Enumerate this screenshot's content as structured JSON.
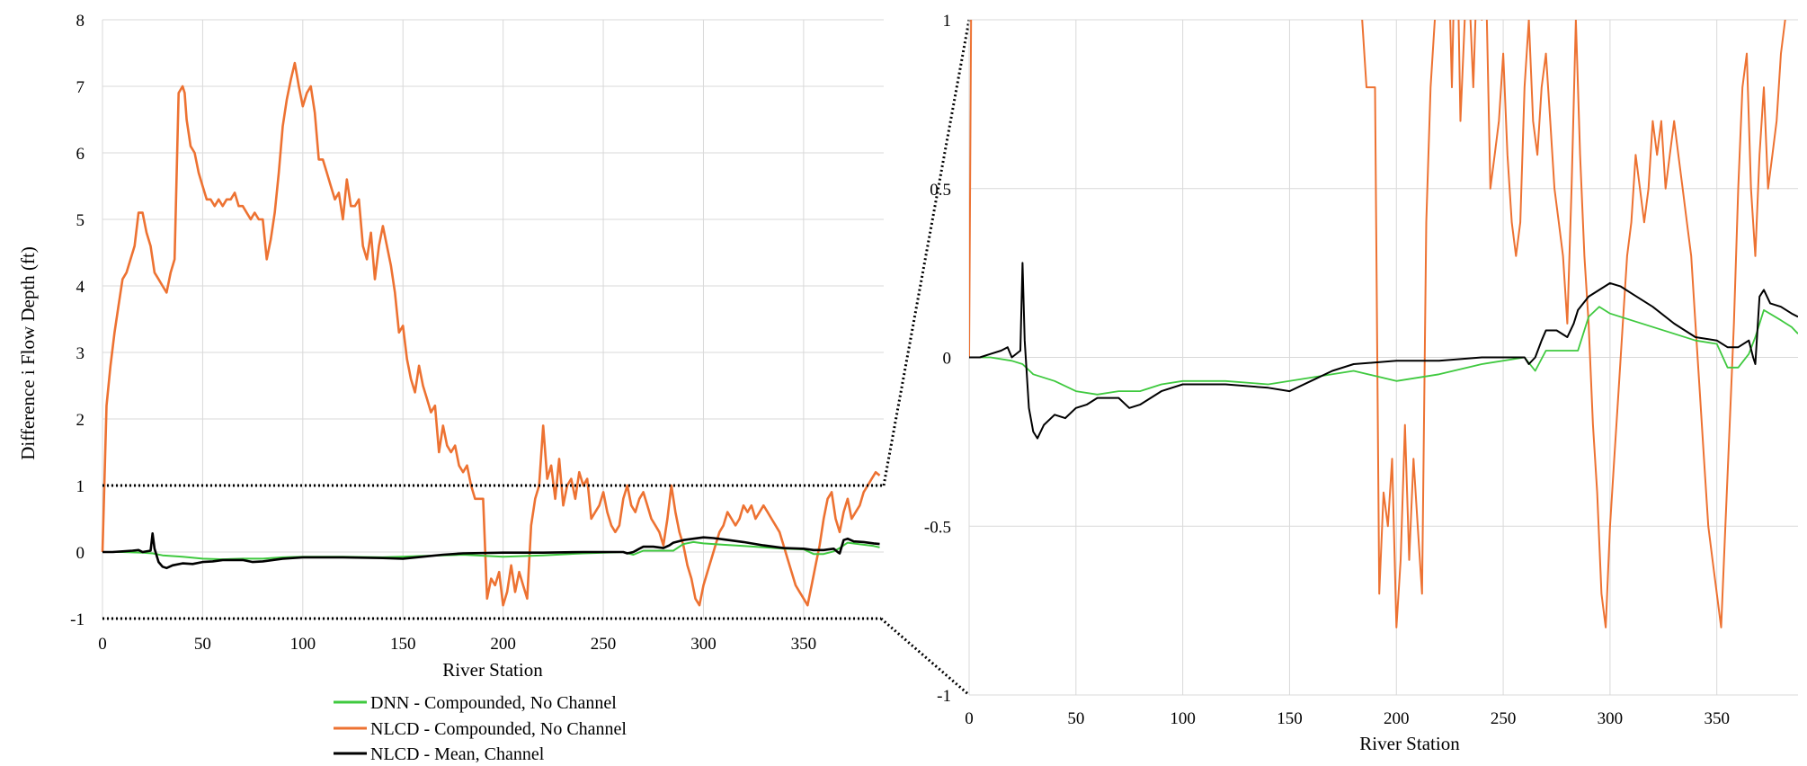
{
  "colors": {
    "dnn": "#3fc93f",
    "nlcd_compound": "#ed7232",
    "nlcd_mean": "#000000",
    "grid": "#d9d9d9"
  },
  "chart_data": [
    {
      "type": "line",
      "ylabel": "Difference i Flow Depth (ft)",
      "xlabel": "River Station",
      "xlim": [
        0,
        390
      ],
      "ylim": [
        -1,
        8
      ],
      "xticks": [
        "0",
        "50",
        "100",
        "150",
        "200",
        "250",
        "300",
        "350"
      ],
      "yticks": [
        "-1",
        "0",
        "1",
        "2",
        "3",
        "4",
        "5",
        "6",
        "7",
        "8"
      ],
      "grid": true,
      "zoom_box_y": [
        -1,
        1
      ],
      "legend": {
        "position": "bottom",
        "entries": [
          "DNN - Compounded, No Channel",
          "NLCD - Compounded, No Channel",
          "NLCD - Mean, Channel"
        ]
      },
      "series": [
        {
          "name": "DNN - Compounded, No Channel",
          "x": [
            0,
            10,
            20,
            25,
            30,
            40,
            50,
            60,
            70,
            80,
            90,
            100,
            120,
            140,
            160,
            180,
            200,
            220,
            240,
            260,
            265,
            270,
            280,
            285,
            290,
            295,
            300,
            310,
            320,
            330,
            340,
            350,
            355,
            360,
            365,
            368,
            372,
            380,
            385,
            388
          ],
          "y": [
            0,
            0,
            -0.01,
            -0.02,
            -0.05,
            -0.07,
            -0.1,
            -0.11,
            -0.1,
            -0.1,
            -0.08,
            -0.07,
            -0.07,
            -0.08,
            -0.06,
            -0.04,
            -0.07,
            -0.05,
            -0.02,
            0,
            -0.04,
            0.02,
            0.02,
            0.02,
            0.12,
            0.15,
            0.13,
            0.11,
            0.09,
            0.07,
            0.05,
            0.04,
            -0.03,
            -0.03,
            0.01,
            0.06,
            0.14,
            0.11,
            0.09,
            0.07
          ]
        },
        {
          "name": "NLCD - Compounded, No Channel",
          "x": [
            0,
            2,
            4,
            6,
            8,
            10,
            12,
            14,
            16,
            18,
            20,
            22,
            24,
            26,
            28,
            30,
            32,
            34,
            36,
            38,
            40,
            41,
            42,
            44,
            46,
            48,
            50,
            52,
            54,
            56,
            58,
            60,
            62,
            64,
            66,
            68,
            70,
            72,
            74,
            76,
            78,
            80,
            82,
            84,
            86,
            88,
            90,
            92,
            94,
            96,
            98,
            100,
            102,
            104,
            106,
            108,
            110,
            112,
            114,
            116,
            118,
            120,
            122,
            124,
            126,
            128,
            130,
            132,
            134,
            136,
            138,
            140,
            142,
            144,
            146,
            148,
            150,
            152,
            154,
            156,
            158,
            160,
            162,
            164,
            166,
            168,
            170,
            172,
            174,
            176,
            178,
            180,
            182,
            184,
            186,
            188,
            190,
            192,
            194,
            196,
            198,
            200,
            202,
            204,
            206,
            208,
            210,
            212,
            214,
            216,
            218,
            220,
            222,
            224,
            226,
            228,
            230,
            232,
            234,
            236,
            238,
            240,
            242,
            244,
            246,
            248,
            250,
            252,
            254,
            256,
            258,
            260,
            262,
            264,
            266,
            268,
            270,
            272,
            274,
            276,
            278,
            280,
            282,
            284,
            286,
            288,
            290,
            292,
            294,
            296,
            298,
            300,
            302,
            304,
            306,
            308,
            310,
            312,
            314,
            316,
            318,
            320,
            322,
            324,
            326,
            328,
            330,
            332,
            334,
            336,
            338,
            340,
            342,
            344,
            346,
            348,
            350,
            352,
            354,
            356,
            358,
            360,
            362,
            364,
            366,
            368,
            370,
            372,
            374,
            376,
            378,
            380,
            382,
            384,
            386,
            388
          ],
          "y": [
            0,
            2.2,
            2.8,
            3.3,
            3.7,
            4.1,
            4.2,
            4.4,
            4.6,
            5.1,
            5.1,
            4.8,
            4.6,
            4.2,
            4.1,
            4.0,
            3.9,
            4.2,
            4.4,
            6.9,
            7.0,
            6.9,
            6.5,
            6.1,
            6.0,
            5.7,
            5.5,
            5.3,
            5.3,
            5.2,
            5.3,
            5.2,
            5.3,
            5.3,
            5.4,
            5.2,
            5.2,
            5.1,
            5.0,
            5.1,
            5.0,
            5.0,
            4.4,
            4.7,
            5.1,
            5.7,
            6.4,
            6.8,
            7.1,
            7.35,
            7.0,
            6.7,
            6.9,
            7.0,
            6.6,
            5.9,
            5.9,
            5.7,
            5.5,
            5.3,
            5.4,
            5.0,
            5.6,
            5.2,
            5.2,
            5.3,
            4.6,
            4.4,
            4.8,
            4.1,
            4.6,
            4.9,
            4.6,
            4.3,
            3.9,
            3.3,
            3.4,
            2.9,
            2.6,
            2.4,
            2.8,
            2.5,
            2.3,
            2.1,
            2.2,
            1.5,
            1.9,
            1.6,
            1.5,
            1.6,
            1.3,
            1.2,
            1.3,
            1.0,
            0.8,
            0.8,
            0.8,
            -0.7,
            -0.4,
            -0.5,
            -0.3,
            -0.8,
            -0.6,
            -0.2,
            -0.6,
            -0.3,
            -0.5,
            -0.7,
            0.4,
            0.8,
            1.0,
            1.9,
            1.1,
            1.3,
            0.8,
            1.4,
            0.7,
            1.0,
            1.1,
            0.8,
            1.2,
            1.0,
            1.1,
            0.5,
            0.6,
            0.7,
            0.9,
            0.6,
            0.4,
            0.3,
            0.4,
            0.8,
            1.0,
            0.7,
            0.6,
            0.8,
            0.9,
            0.7,
            0.5,
            0.4,
            0.3,
            0.1,
            0.5,
            1.0,
            0.6,
            0.3,
            0.1,
            -0.2,
            -0.4,
            -0.7,
            -0.8,
            -0.5,
            -0.3,
            -0.1,
            0.1,
            0.3,
            0.4,
            0.6,
            0.5,
            0.4,
            0.5,
            0.7,
            0.6,
            0.7,
            0.5,
            0.6,
            0.7,
            0.6,
            0.5,
            0.4,
            0.3,
            0.1,
            -0.1,
            -0.3,
            -0.5,
            -0.6,
            -0.7,
            -0.8,
            -0.5,
            -0.2,
            0.1,
            0.5,
            0.8,
            0.9,
            0.5,
            0.3,
            0.6,
            0.8,
            0.5,
            0.6,
            0.7,
            0.9,
            1.0,
            1.1,
            1.2,
            1.15
          ]
        },
        {
          "name": "NLCD - Mean, Channel",
          "x": [
            0,
            5,
            10,
            15,
            18,
            20,
            24,
            25,
            26,
            28,
            30,
            32,
            35,
            40,
            45,
            50,
            55,
            60,
            65,
            70,
            75,
            80,
            85,
            90,
            100,
            120,
            140,
            150,
            160,
            170,
            180,
            200,
            220,
            240,
            260,
            262,
            265,
            268,
            270,
            275,
            280,
            283,
            285,
            290,
            295,
            300,
            305,
            310,
            320,
            330,
            340,
            350,
            355,
            360,
            365,
            367,
            368,
            370,
            372,
            375,
            380,
            385,
            388
          ],
          "y": [
            0,
            0,
            0.01,
            0.02,
            0.03,
            0.0,
            0.02,
            0.28,
            0.05,
            -0.15,
            -0.22,
            -0.24,
            -0.2,
            -0.17,
            -0.18,
            -0.15,
            -0.14,
            -0.12,
            -0.12,
            -0.12,
            -0.15,
            -0.14,
            -0.12,
            -0.1,
            -0.08,
            -0.08,
            -0.09,
            -0.1,
            -0.07,
            -0.04,
            -0.02,
            -0.01,
            -0.01,
            0.0,
            0.0,
            -0.02,
            0.0,
            0.05,
            0.08,
            0.08,
            0.06,
            0.1,
            0.14,
            0.18,
            0.2,
            0.22,
            0.21,
            0.19,
            0.15,
            0.1,
            0.06,
            0.05,
            0.03,
            0.03,
            0.05,
            0.0,
            -0.02,
            0.18,
            0.2,
            0.16,
            0.15,
            0.13,
            0.12
          ]
        }
      ]
    },
    {
      "type": "line",
      "ylabel": "",
      "xlabel": "River Station",
      "xlim": [
        0,
        388
      ],
      "ylim": [
        -1,
        1
      ],
      "xticks": [
        "0",
        "50",
        "100",
        "150",
        "200",
        "250",
        "300",
        "350"
      ],
      "yticks": [
        "-1",
        "-0.5",
        "0",
        "0.5",
        "1"
      ],
      "grid": true,
      "series_ref": "same as left chart (zoomed view)"
    }
  ]
}
